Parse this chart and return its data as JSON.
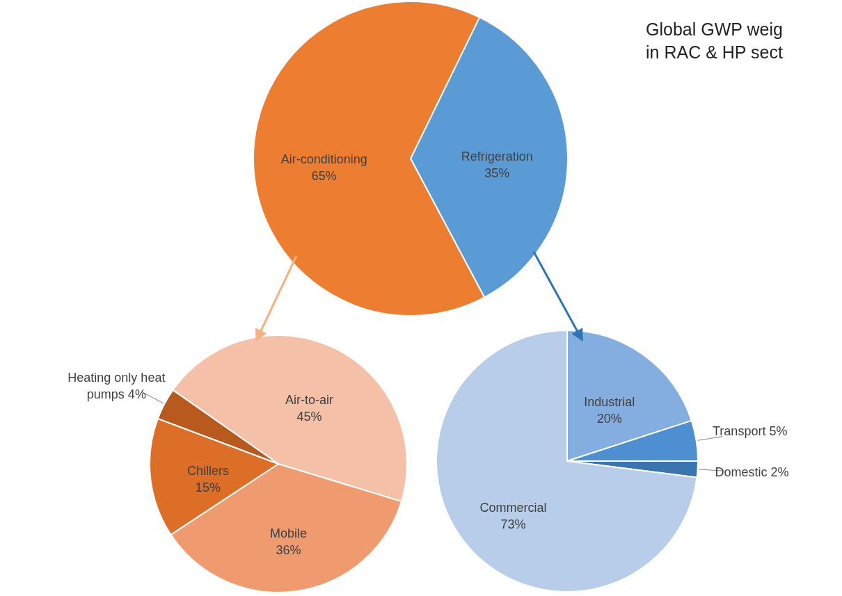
{
  "chart_data": [
    {
      "type": "pie",
      "title": "Global GWP weig\nin RAC & HP sect",
      "categories": [
        "Refrigeration",
        "Air-conditioning"
      ],
      "values": [
        35,
        65
      ],
      "colors": [
        "#5b9bd5",
        "#ed7d31"
      ],
      "value_labels": [
        "35%",
        "65%"
      ]
    },
    {
      "type": "pie",
      "categories": [
        "Air-to-air",
        "Mobile",
        "Chillers",
        "Heating only heat pumps"
      ],
      "values": [
        45,
        36,
        15,
        4
      ],
      "colors": [
        "#f4c0a8",
        "#f09b6f",
        "#dc6e27",
        "#b85a1e"
      ],
      "value_labels": [
        "45%",
        "36%",
        "15%",
        "4%"
      ]
    },
    {
      "type": "pie",
      "categories": [
        "Industrial",
        "Transport",
        "Domestic",
        "Commercial"
      ],
      "values": [
        20,
        5,
        2,
        73
      ],
      "colors": [
        "#84aedf",
        "#4d8fd0",
        "#3a75b0",
        "#b7cde9"
      ],
      "value_labels": [
        "20%",
        "5%",
        "2%",
        "73%"
      ]
    }
  ]
}
